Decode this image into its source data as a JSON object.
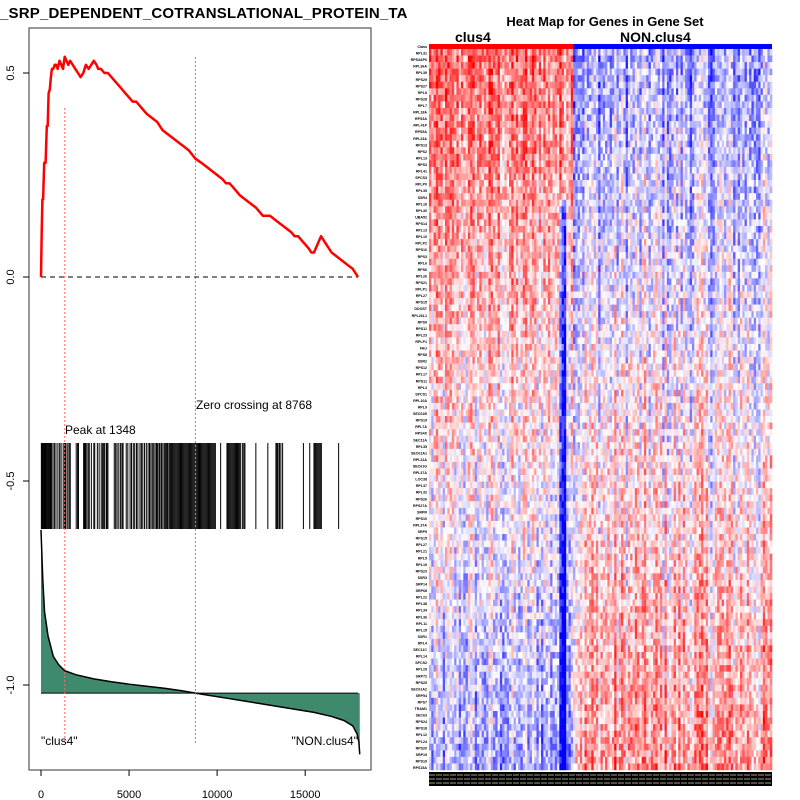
{
  "chart_data": [
    {
      "type": "line",
      "panel": "enrichment",
      "title": "_SRP_DEPENDENT_COTRANSLATIONAL_PROTEIN_TA",
      "xlabel": "",
      "ylabel": "",
      "xlim": [
        0,
        18100
      ],
      "ylim": [
        -1.15,
        0.62
      ],
      "x_ticks": [
        0,
        5000,
        10000,
        15000
      ],
      "x_tick_labels": [
        "0",
        "5000",
        "10000",
        "15000"
      ],
      "y_ticks": [
        0.5,
        0.0,
        -0.5,
        -1.0
      ],
      "y_tick_labels": [
        "0.5",
        "0.0",
        "-0.5",
        "-1.0"
      ],
      "grid": false,
      "series": [
        {
          "name": "Running enrichment score",
          "color": "#ff0000",
          "x": [
            0,
            40,
            80,
            120,
            180,
            260,
            330,
            380,
            430,
            500,
            560,
            620,
            700,
            780,
            860,
            950,
            1050,
            1150,
            1250,
            1348,
            1450,
            1550,
            1650,
            1800,
            1950,
            2100,
            2250,
            2400,
            2550,
            2700,
            2850,
            3000,
            3150,
            3250,
            3400,
            3600,
            3800,
            4000,
            4200,
            4400,
            4600,
            4800,
            5000,
            5200,
            5400,
            5600,
            5800,
            6000,
            6300,
            6600,
            6900,
            7200,
            7500,
            7800,
            8100,
            8400,
            8768,
            9100,
            9400,
            9700,
            10000,
            10300,
            10500,
            10700,
            10900,
            11100,
            11300,
            11600,
            11900,
            12200,
            12400,
            12600,
            12800,
            13000,
            13300,
            13600,
            13900,
            14200,
            14400,
            14600,
            14800,
            15000,
            15200,
            15350,
            15500,
            15700,
            15900,
            16200,
            16500,
            16800,
            17100,
            17400,
            17700,
            18000
          ],
          "values": [
            0.0,
            0.11,
            0.19,
            0.19,
            0.28,
            0.28,
            0.37,
            0.37,
            0.45,
            0.46,
            0.49,
            0.51,
            0.51,
            0.52,
            0.52,
            0.51,
            0.53,
            0.52,
            0.51,
            0.54,
            0.53,
            0.52,
            0.53,
            0.52,
            0.51,
            0.5,
            0.49,
            0.5,
            0.52,
            0.51,
            0.52,
            0.53,
            0.52,
            0.51,
            0.51,
            0.5,
            0.5,
            0.49,
            0.48,
            0.47,
            0.46,
            0.45,
            0.44,
            0.43,
            0.43,
            0.42,
            0.41,
            0.4,
            0.39,
            0.38,
            0.36,
            0.35,
            0.34,
            0.33,
            0.32,
            0.31,
            0.29,
            0.28,
            0.27,
            0.26,
            0.25,
            0.24,
            0.23,
            0.23,
            0.22,
            0.21,
            0.2,
            0.19,
            0.18,
            0.17,
            0.16,
            0.15,
            0.15,
            0.15,
            0.14,
            0.13,
            0.12,
            0.11,
            0.1,
            0.1,
            0.09,
            0.08,
            0.07,
            0.06,
            0.06,
            0.08,
            0.1,
            0.08,
            0.06,
            0.05,
            0.04,
            0.03,
            0.02,
            0.0
          ]
        }
      ],
      "baseline": {
        "value": 0.0,
        "style": "dashed",
        "color": "#555555"
      },
      "peak": {
        "x": 1348,
        "label": "Peak at 1348",
        "color": "#ff6666"
      },
      "zero_crossing": {
        "x": 8768,
        "label": "Zero crossing at 8768",
        "color": "#33cc33"
      },
      "hits": {
        "color": "#000000",
        "positions": [
          20,
          60,
          100,
          140,
          190,
          230,
          280,
          330,
          380,
          430,
          480,
          540,
          600,
          680,
          760,
          850,
          960,
          1060,
          1140,
          1260,
          1340,
          1360,
          1420,
          1520,
          1600,
          1660,
          2000,
          2080,
          2130,
          2420,
          2470,
          2530,
          2600,
          2680,
          2740,
          2860,
          3000,
          3050,
          3200,
          3300,
          3420,
          3500,
          3560,
          3600,
          3700,
          3740,
          3800,
          4160,
          4240,
          4320,
          4420,
          4520,
          4600,
          4660,
          4840,
          4930,
          5060,
          5140,
          5240,
          5320,
          5420,
          5500,
          5620,
          5700,
          5780,
          5880,
          5980,
          6080,
          6160,
          6240,
          6320,
          6400,
          6480,
          6560,
          6620,
          6700,
          6760,
          6840,
          6920,
          7000,
          7060,
          7120,
          7180,
          7260,
          7320,
          7380,
          7440,
          7500,
          7560,
          7620,
          7680,
          7740,
          7800,
          7860,
          7920,
          7980,
          8040,
          8100,
          8160,
          8220,
          8280,
          8340,
          8400,
          8460,
          8520,
          8580,
          8640,
          8700,
          8760,
          8820,
          8880,
          8940,
          9000,
          9060,
          9120,
          9180,
          9240,
          9300,
          9360,
          9420,
          9480,
          9540,
          9600,
          9660,
          9720,
          9780,
          9840,
          9900,
          10200,
          10560,
          10620,
          10680,
          10740,
          10800,
          10860,
          10920,
          10980,
          11040,
          11100,
          11160,
          11220,
          11280,
          11340,
          11450,
          11520,
          11580,
          12200,
          12880,
          13340,
          13400,
          13460,
          13540,
          13620,
          13720,
          14900,
          15260,
          15500,
          15560,
          15620,
          15680,
          15740,
          15800,
          15860,
          15920,
          16900
        ]
      },
      "ranked_metric": {
        "fill_color": "#3f8a6c",
        "line_color": "#000000",
        "baseline": -1.02,
        "x": [
          0,
          100,
          200,
          400,
          700,
          1000,
          1348,
          2000,
          3000,
          4000,
          5000,
          6000,
          7000,
          8000,
          8768,
          9500,
          10500,
          11500,
          12500,
          13500,
          14500,
          15500,
          16500,
          17200,
          17700,
          17950,
          18050,
          18100
        ],
        "values": [
          -0.62,
          -0.74,
          -0.82,
          -0.88,
          -0.93,
          -0.95,
          -0.965,
          -0.975,
          -0.985,
          -0.992,
          -0.998,
          -1.003,
          -1.008,
          -1.014,
          -1.02,
          -1.025,
          -1.032,
          -1.039,
          -1.046,
          -1.053,
          -1.06,
          -1.067,
          -1.077,
          -1.087,
          -1.1,
          -1.12,
          -1.14,
          -1.17
        ]
      },
      "annotations": [
        "\"clus4\"",
        "\"NON.clus4\""
      ]
    },
    {
      "type": "heatmap",
      "panel": "gene-set-heatmap",
      "title": "Heat Map for Genes in Gene Set",
      "column_groups": [
        {
          "name": "clus4",
          "color": "#ff0000",
          "fraction": 0.42
        },
        {
          "name": "NON.clus4",
          "color": "#0000ff",
          "fraction": 0.58
        }
      ],
      "class_row_label": "Class",
      "row_labels": [
        "RPL31",
        "RPS3AP6",
        "RPL36A",
        "RPL39",
        "RPS29",
        "RPS27",
        "RPL8",
        "RPS28",
        "RPL7",
        "RPL18A",
        "RPS3A",
        "RPL41P",
        "RPS5A",
        "RPL23A",
        "RPS13",
        "RPS2",
        "RPL13",
        "RPS3",
        "RPL41",
        "SPCS3",
        "RPLP0",
        "RPL35",
        "SSR4",
        "RPL18",
        "RPL30",
        "UBA52",
        "RPS14",
        "RPL13",
        "RPL10",
        "RPLP2",
        "RPS16",
        "RPS3",
        "RPL6",
        "RPS6",
        "RPL26",
        "RPS21",
        "RPLP1",
        "RPL27",
        "RPS15",
        "DDOST",
        "RPL26L1",
        "RPS9",
        "RPS11",
        "RPL23",
        "RPLP1",
        "FAU",
        "RPS8",
        "SSR2",
        "RPS12",
        "RPL17",
        "RPS11",
        "RPL3",
        "SPCS1",
        "RPL10A",
        "RPL9",
        "SEC61B",
        "RPS19",
        "RPL7A",
        "RPS4X",
        "SEC11A",
        "RPL35",
        "SEC61A1",
        "RPL22A",
        "SEC61G",
        "RPL37A",
        "LOC38",
        "RPL37",
        "RPL32",
        "RPS26",
        "RPS27A",
        "SRPR",
        "RPS10",
        "RPL37A",
        "SRP9",
        "RPS15",
        "RPL27",
        "RPL21",
        "RPL5",
        "RPL19",
        "RPS23",
        "SSR3",
        "SRP14",
        "SRP68",
        "RPL22",
        "RPL38",
        "RPL34",
        "RPL36",
        "RPL11",
        "RPL15",
        "SSR1",
        "RPL4",
        "SEC11C",
        "RPL14",
        "SPCS2",
        "RPL29",
        "SRP72",
        "RPS25",
        "SEC61A2",
        "SRP54",
        "RPS7",
        "TRAM1",
        "SEC63",
        "RPS24",
        "RPS18",
        "RPL12",
        "RPL24",
        "RPS20",
        "SRP19",
        "RPS19",
        "RPS15A"
      ],
      "color_scale": {
        "low": "#0000ff",
        "mid": "#ffffff",
        "high": "#ff0000"
      },
      "pattern": "clus4 columns mostly red (high); NON.clus4 columns mostly light blue/white at top, increasingly red toward bottom rows; strong blue stripe near right end of clus4 block"
    }
  ],
  "labels": {
    "left_title": "_SRP_DEPENDENT_COTRANSLATIONAL_PROTEIN_TA",
    "peak_label": "Peak at 1348",
    "zero_label": "Zero crossing at 8768",
    "pos_class": "\"clus4\"",
    "neg_class": "\"NON.clus4\"",
    "heatmap_title": "Heat Map for Genes in Gene Set",
    "group_a": "clus4",
    "group_b": "NON.clus4",
    "class_row": "Class"
  }
}
